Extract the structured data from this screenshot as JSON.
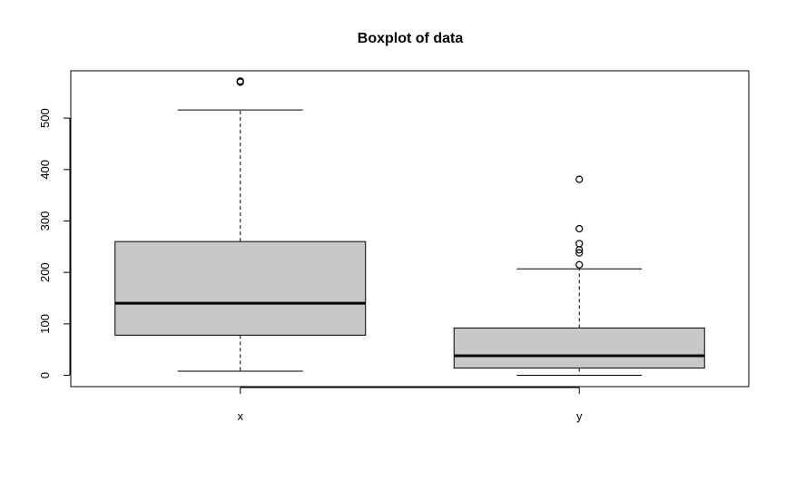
{
  "chart_data": {
    "type": "boxplot",
    "title": "Boxplot of data",
    "xlabel": "",
    "ylabel": "",
    "categories": [
      "x",
      "y"
    ],
    "yticks": [
      0,
      100,
      200,
      300,
      400,
      500
    ],
    "ylim": [
      -22,
      592
    ],
    "grid": false,
    "legend": "none",
    "boxes": [
      {
        "name": "x",
        "whisker_low": 8,
        "q1": 78,
        "median": 140,
        "q3": 260,
        "whisker_high": 516,
        "outliers": [
          570,
          572
        ]
      },
      {
        "name": "y",
        "whisker_low": 0,
        "q1": 14,
        "median": 38,
        "q3": 92,
        "whisker_high": 207,
        "outliers": [
          215,
          238,
          244,
          256,
          285,
          381
        ]
      }
    ],
    "box_fill": "#c8c8c8",
    "line_color": "#000000"
  }
}
